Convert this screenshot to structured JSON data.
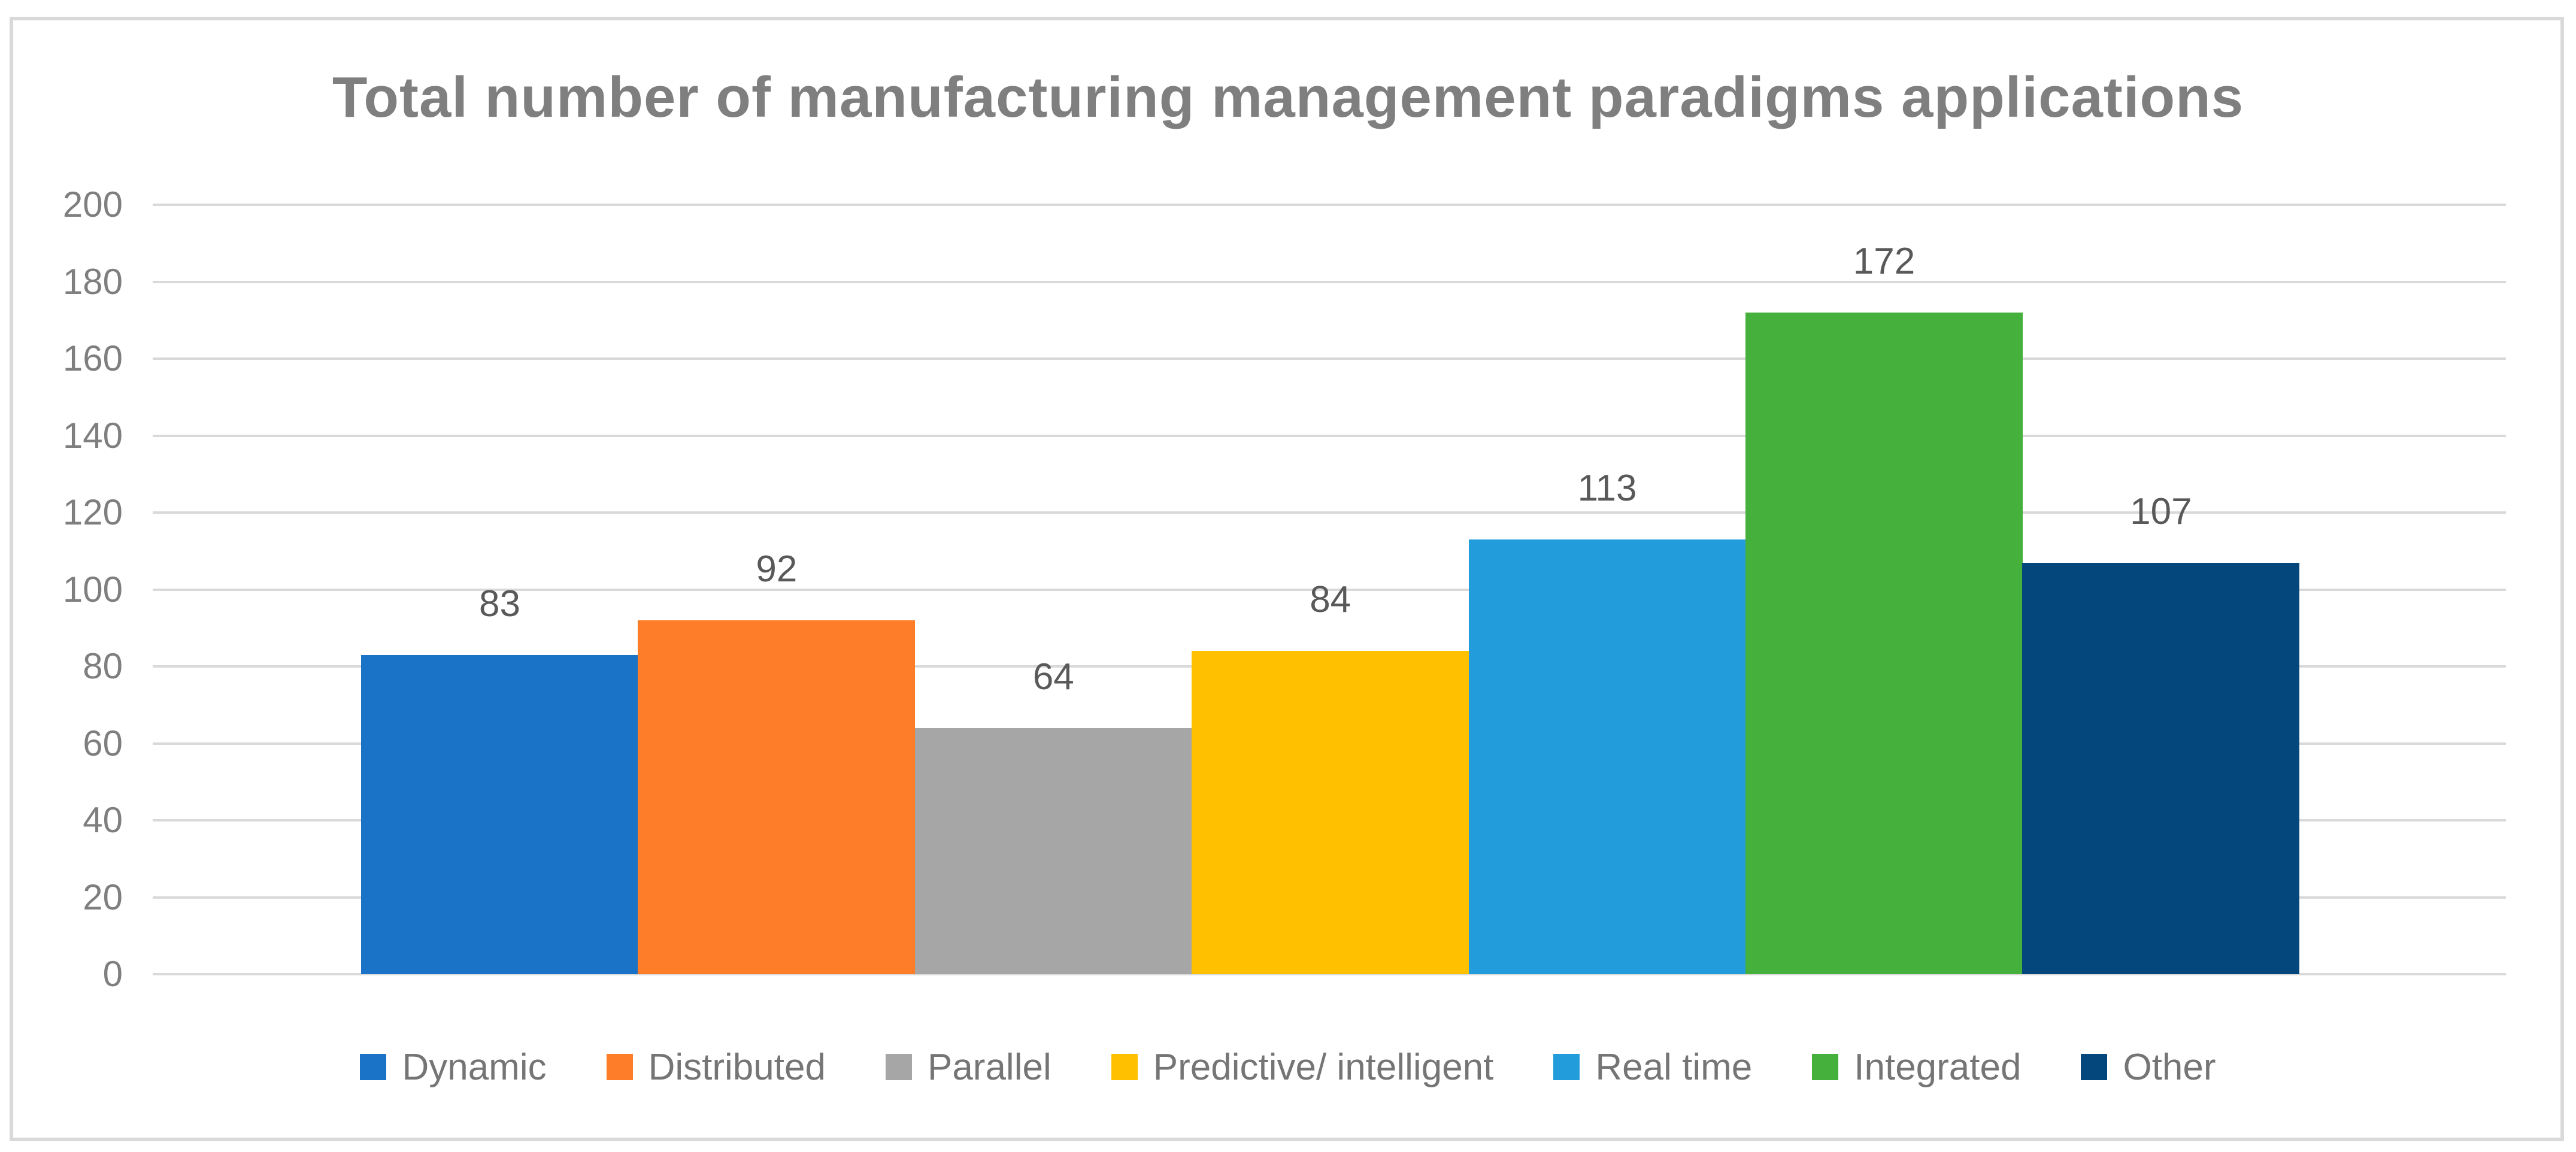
{
  "chart_data": {
    "type": "bar",
    "title": "Total number of manufacturing management paradigms applications",
    "categories": [
      "Dynamic",
      "Distributed",
      "Parallel",
      "Predictive/ intelligent",
      "Real time",
      "Integrated",
      "Other"
    ],
    "values": [
      83,
      92,
      64,
      84,
      113,
      172,
      107
    ],
    "colors": [
      "#1B73C8",
      "#FD7D28",
      "#A6A6A6",
      "#FFC000",
      "#229CDA",
      "#45B03C",
      "#04477C"
    ],
    "xlabel": "",
    "ylabel": "",
    "ylim": [
      0,
      200
    ],
    "ytick_step": 20,
    "yticks": [
      0,
      20,
      40,
      60,
      80,
      100,
      120,
      140,
      160,
      180,
      200
    ],
    "grid": "horizontal",
    "legend_position": "bottom"
  },
  "colors": {
    "title_text": "#7F7F7F",
    "axis_text": "#7F7F7F",
    "data_label_text": "#595959",
    "legend_text": "#757575",
    "gridline": "#D9D9D9",
    "frame_border": "#D9D9D9",
    "background": "#FFFFFF"
  }
}
